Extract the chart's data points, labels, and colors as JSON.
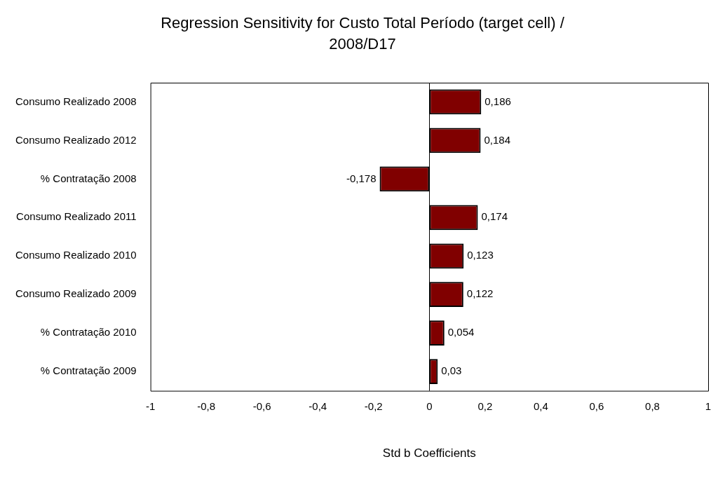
{
  "chart_data": {
    "type": "bar",
    "orientation": "horizontal",
    "title": "Regression Sensitivity for Custo Total Período (target cell) / 2008/D17",
    "xlabel": "Std b Coefficients",
    "categories": [
      "Consumo Realizado 2008",
      "Consumo Realizado 2012",
      "% Contratação 2008",
      "Consumo Realizado 2011",
      "Consumo Realizado 2010",
      "Consumo Realizado 2009",
      "% Contratação 2010",
      "% Contratação 2009"
    ],
    "values": [
      0.186,
      0.184,
      -0.178,
      0.174,
      0.123,
      0.122,
      0.054,
      0.03
    ],
    "value_labels": [
      "0,186",
      "0,184",
      "-0,178",
      "0,174",
      "0,123",
      "0,122",
      "0,054",
      "0,03"
    ],
    "color": "#800000",
    "xlim": [
      -1,
      1
    ],
    "xticks": [
      -1,
      {
        "value": -0.8,
        "label": "-0,8"
      },
      {
        "value": -0.6,
        "label": "-0,6"
      },
      {
        "value": -0.4,
        "label": "-0,4"
      },
      {
        "value": -0.2,
        "label": "-0,2"
      },
      0,
      {
        "value": 0.2,
        "label": "0,2"
      },
      {
        "value": 0.4,
        "label": "0,4"
      },
      {
        "value": 0.6,
        "label": "0,6"
      },
      {
        "value": 0.8,
        "label": "0,8"
      },
      1
    ],
    "legend": false
  }
}
